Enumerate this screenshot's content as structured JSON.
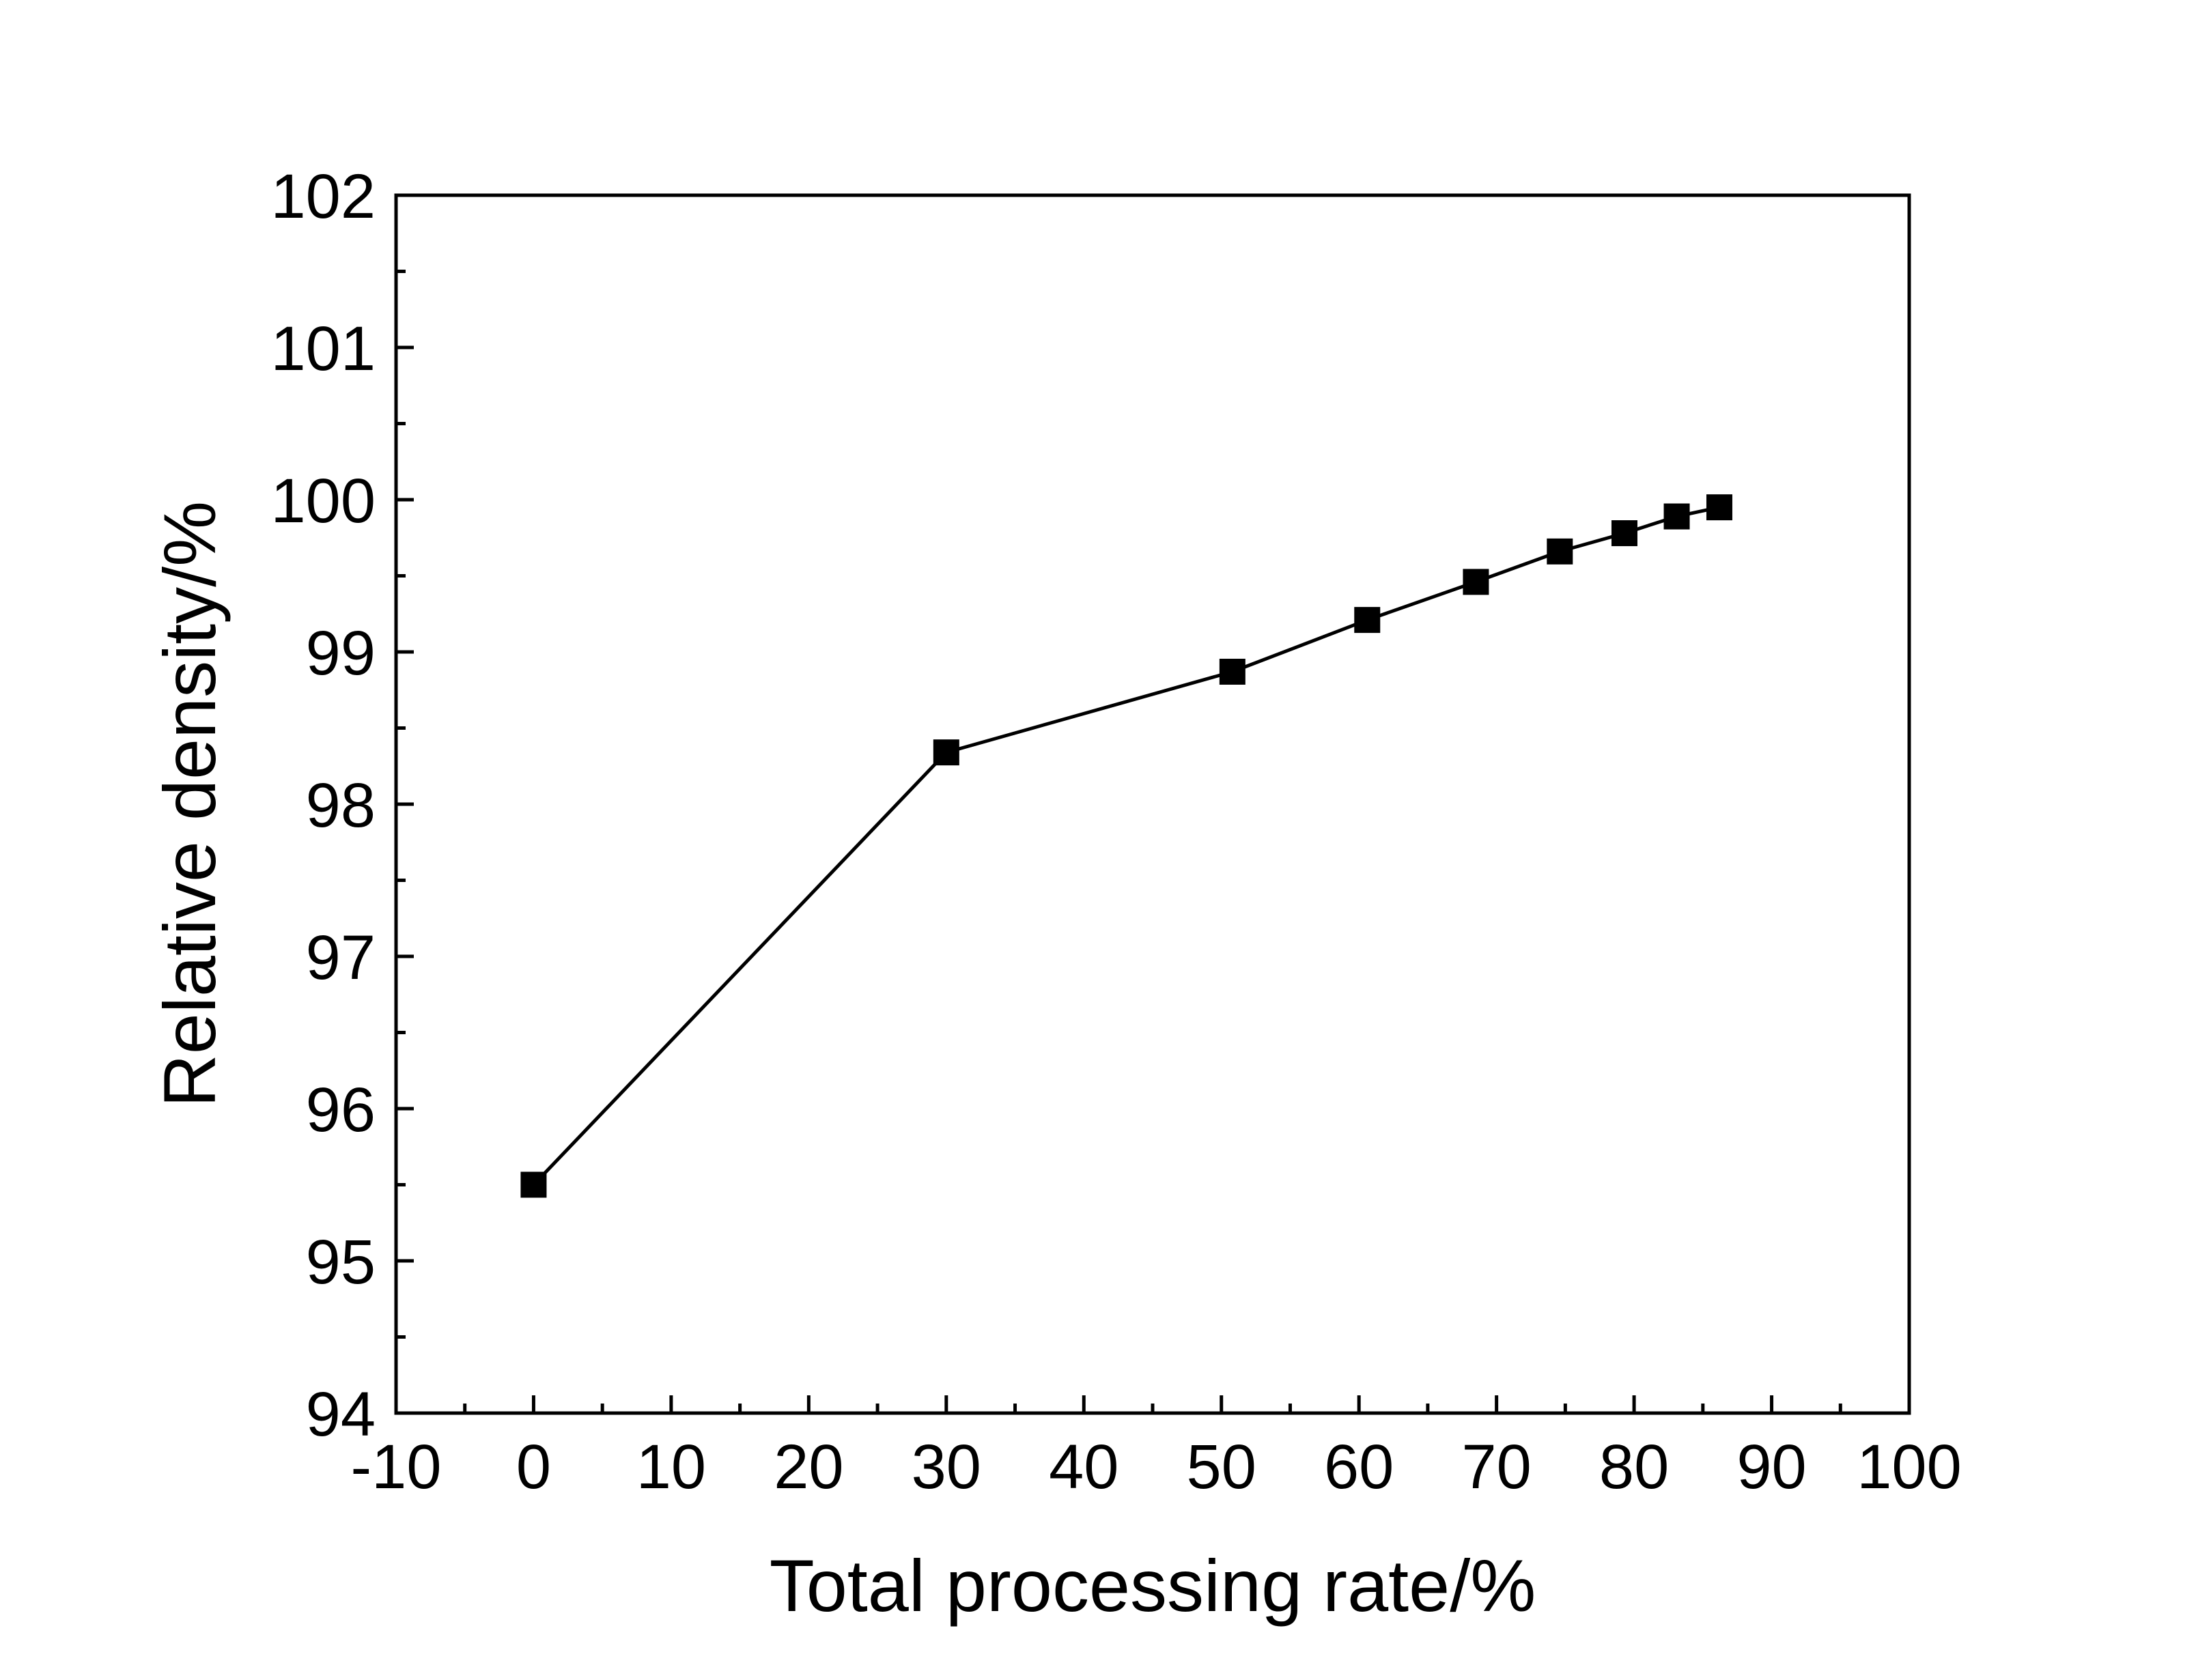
{
  "chart_data": {
    "type": "line",
    "title": "",
    "xlabel": "Total processing rate/%",
    "ylabel": "Relative density/%",
    "xlim": [
      -10,
      100
    ],
    "ylim": [
      94,
      102
    ],
    "x_ticks": [
      -10,
      0,
      10,
      20,
      30,
      40,
      50,
      60,
      70,
      80,
      90,
      100
    ],
    "y_ticks": [
      94,
      95,
      96,
      97,
      98,
      99,
      100,
      101,
      102
    ],
    "grid": false,
    "legend": "none",
    "series": [
      {
        "marker": "square",
        "color": "#000000",
        "points": [
          {
            "x": 0,
            "y": 95.5
          },
          {
            "x": 30,
            "y": 98.34
          },
          {
            "x": 50.8,
            "y": 98.87
          },
          {
            "x": 60.6,
            "y": 99.21
          },
          {
            "x": 68.5,
            "y": 99.46
          },
          {
            "x": 74.6,
            "y": 99.66
          },
          {
            "x": 79.3,
            "y": 99.78
          },
          {
            "x": 83.1,
            "y": 99.89
          },
          {
            "x": 86.2,
            "y": 99.95
          }
        ]
      }
    ]
  }
}
